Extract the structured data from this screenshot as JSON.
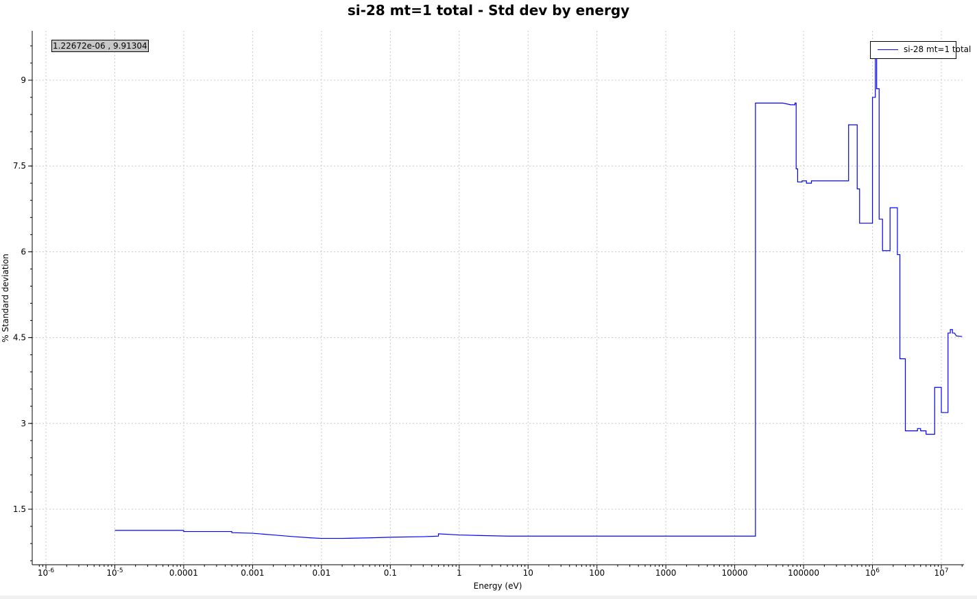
{
  "chart_data": {
    "type": "line",
    "title": "si-28 mt=1 total - Std dev by energy",
    "xlabel": "Energy (eV)",
    "ylabel": "% Standard deviation",
    "xscale": "log",
    "xlim": [
      8e-07,
      21000000.0
    ],
    "ylim": [
      0.3,
      9.9
    ],
    "grid": true,
    "legend_position": "top-right",
    "x_ticks": [
      {
        "value": 1e-06,
        "base": "10",
        "exp": "-6"
      },
      {
        "value": 1e-05,
        "base": "10",
        "exp": "-5"
      },
      {
        "value": 0.0001,
        "label": "0.0001"
      },
      {
        "value": 0.001,
        "label": "0.001"
      },
      {
        "value": 0.01,
        "label": "0.01"
      },
      {
        "value": 0.1,
        "label": "0.1"
      },
      {
        "value": 1,
        "label": "1"
      },
      {
        "value": 10,
        "label": "10"
      },
      {
        "value": 100,
        "label": "100"
      },
      {
        "value": 1000,
        "label": "1000"
      },
      {
        "value": 10000,
        "label": "10000"
      },
      {
        "value": 100000,
        "label": "100000"
      },
      {
        "value": 1000000.0,
        "base": "10",
        "exp": "6"
      },
      {
        "value": 10000000.0,
        "base": "10",
        "exp": "7"
      }
    ],
    "y_ticks": [
      {
        "value": 1.5,
        "label": "1.5"
      },
      {
        "value": 3,
        "label": "3"
      },
      {
        "value": 4.5,
        "label": "4.5"
      },
      {
        "value": 6,
        "label": "6"
      },
      {
        "value": 7.5,
        "label": "7.5"
      },
      {
        "value": 9,
        "label": "9"
      }
    ],
    "series": [
      {
        "name": "si-28 mt=1 total",
        "color": "#0000ff",
        "points": [
          [
            1e-05,
            1.13
          ],
          [
            0.0001,
            1.13
          ],
          [
            0.0001,
            1.11
          ],
          [
            0.0005,
            1.11
          ],
          [
            0.0005,
            1.09
          ],
          [
            0.001,
            1.08
          ],
          [
            0.002,
            1.05
          ],
          [
            0.004,
            1.02
          ],
          [
            0.007,
            1.0
          ],
          [
            0.01,
            0.99
          ],
          [
            0.02,
            0.99
          ],
          [
            0.05,
            1.0
          ],
          [
            0.1,
            1.01
          ],
          [
            0.3,
            1.02
          ],
          [
            0.5,
            1.03
          ],
          [
            0.5,
            1.07
          ],
          [
            1,
            1.05
          ],
          [
            2,
            1.04
          ],
          [
            5,
            1.03
          ],
          [
            20000,
            1.03
          ],
          [
            20000,
            8.6
          ],
          [
            50000,
            8.6
          ],
          [
            65000,
            8.57
          ],
          [
            75000,
            8.57
          ],
          [
            75000,
            8.6
          ],
          [
            78000,
            8.6
          ],
          [
            78000,
            7.45
          ],
          [
            82000,
            7.45
          ],
          [
            82000,
            7.22
          ],
          [
            95000,
            7.22
          ],
          [
            95000,
            7.24
          ],
          [
            110000,
            7.24
          ],
          [
            110000,
            7.2
          ],
          [
            130000,
            7.2
          ],
          [
            130000,
            7.24
          ],
          [
            450000,
            7.24
          ],
          [
            450000,
            8.22
          ],
          [
            600000,
            8.22
          ],
          [
            600000,
            7.1
          ],
          [
            650000,
            7.1
          ],
          [
            650000,
            6.5
          ],
          [
            1000000,
            6.5
          ],
          [
            1000000,
            8.7
          ],
          [
            1100000,
            8.7
          ],
          [
            1100000,
            9.4
          ],
          [
            1150000,
            9.4
          ],
          [
            1150000,
            8.85
          ],
          [
            1250000,
            8.85
          ],
          [
            1250000,
            6.57
          ],
          [
            1400000,
            6.57
          ],
          [
            1400000,
            6.02
          ],
          [
            1800000,
            6.02
          ],
          [
            1800000,
            6.77
          ],
          [
            2300000,
            6.77
          ],
          [
            2300000,
            5.95
          ],
          [
            2500000,
            5.95
          ],
          [
            2500000,
            4.13
          ],
          [
            3000000,
            4.13
          ],
          [
            3000000,
            2.87
          ],
          [
            4500000,
            2.87
          ],
          [
            4500000,
            2.91
          ],
          [
            5000000,
            2.91
          ],
          [
            5000000,
            2.87
          ],
          [
            6000000,
            2.87
          ],
          [
            6000000,
            2.81
          ],
          [
            8000000,
            2.81
          ],
          [
            8000000,
            3.63
          ],
          [
            10000000,
            3.63
          ],
          [
            10000000,
            3.19
          ],
          [
            12500000,
            3.19
          ],
          [
            12500000,
            4.58
          ],
          [
            13500000,
            4.58
          ],
          [
            13500000,
            4.64
          ],
          [
            14500000,
            4.64
          ],
          [
            14500000,
            4.58
          ],
          [
            15500000,
            4.58
          ],
          [
            16500000,
            4.53
          ],
          [
            20000000,
            4.52
          ]
        ]
      }
    ]
  },
  "coordinate_readout": "1.22672e-06 , 9.91304",
  "legend": {
    "label": "si-28 mt=1 total"
  }
}
